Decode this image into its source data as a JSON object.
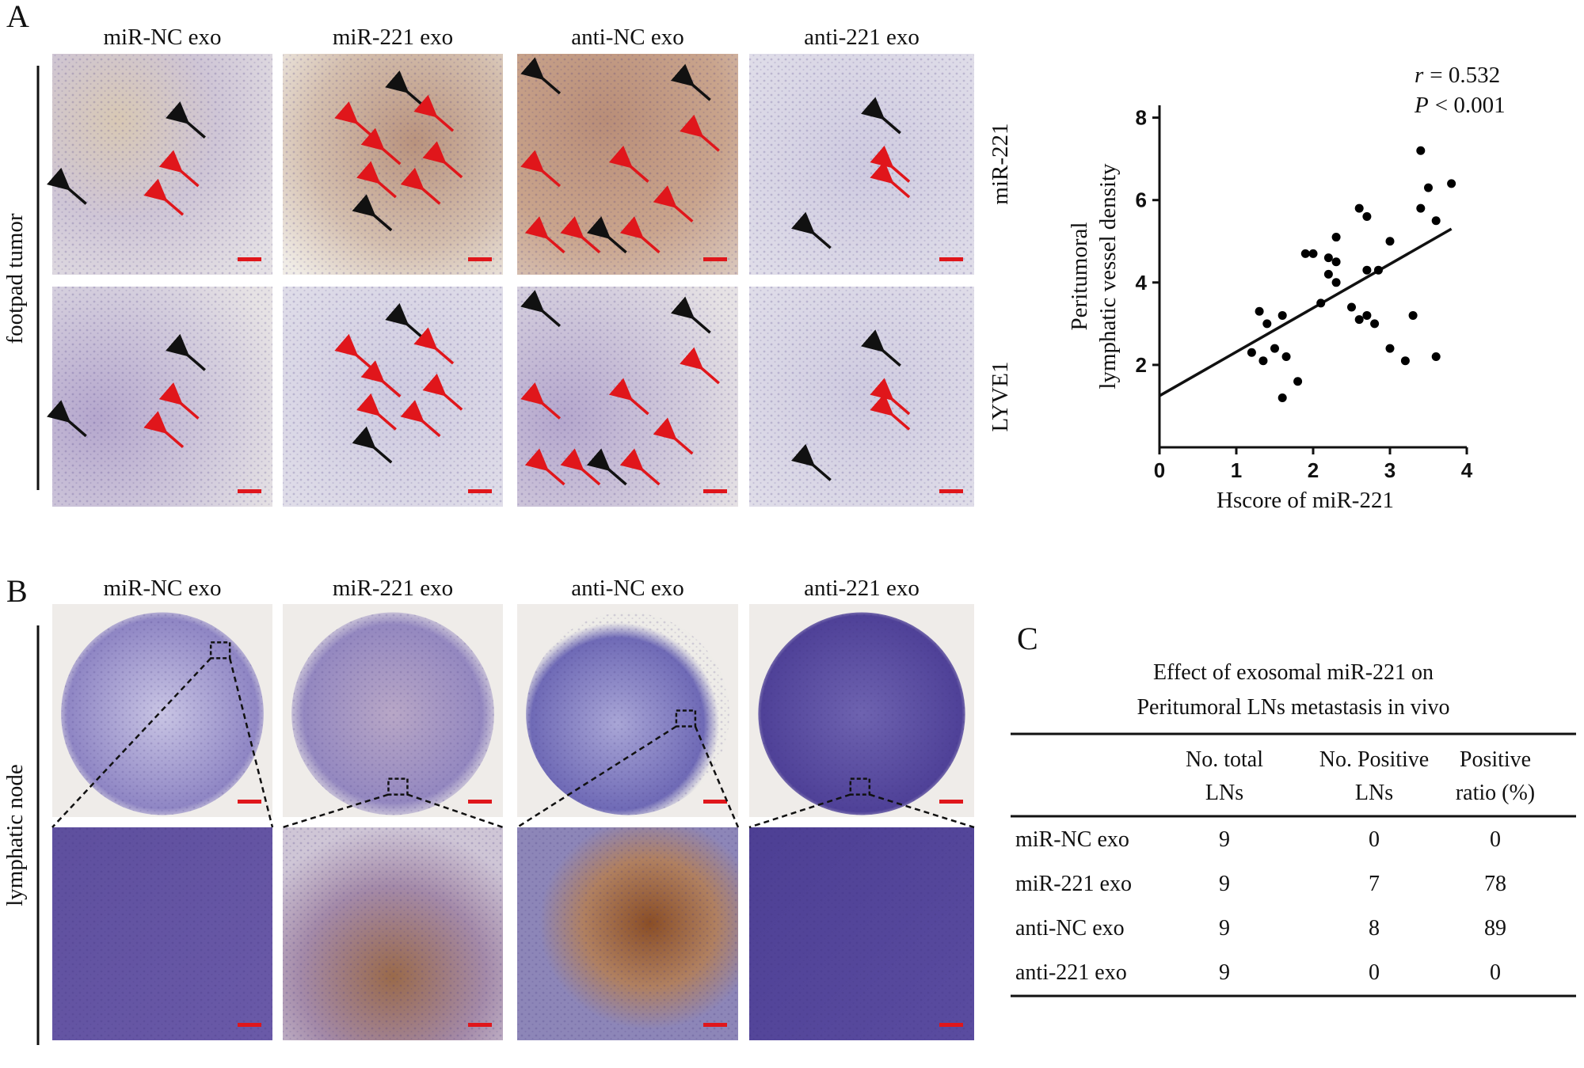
{
  "panel_labels": [
    "A",
    "B",
    "C"
  ],
  "panel_a": {
    "columns": [
      "miR-NC exo",
      "miR-221 exo",
      "anti-NC exo",
      "anti-221 exo"
    ],
    "rows": [
      "miR-221",
      "LYVE1"
    ],
    "side_label": "footpad tumor"
  },
  "panel_b": {
    "columns": [
      "miR-NC exo",
      "miR-221 exo",
      "anti-NC exo",
      "anti-221 exo"
    ],
    "side_label": "lymphatic node"
  },
  "chart_data": {
    "type": "scatter",
    "x_label": "Hscore of miR-221",
    "y_label": [
      "Peritumoral",
      "lymphatic vessel density"
    ],
    "annotations": [
      {
        "symbol": "r",
        "text": "= 0.532"
      },
      {
        "symbol": "P",
        "text": "< 0.001"
      }
    ],
    "x": [
      3.4,
      3.8,
      3.5,
      3.6,
      3.4,
      2.6,
      2.7,
      2.3,
      1.9,
      2.0,
      2.2,
      2.3,
      2.2,
      2.3,
      2.7,
      2.85,
      3.0,
      2.1,
      2.5,
      2.6,
      2.7,
      2.8,
      3.3,
      3.0,
      3.2,
      3.6,
      1.3,
      1.4,
      1.6,
      1.2,
      1.5,
      1.35,
      1.65,
      1.8,
      1.6
    ],
    "values": [
      7.2,
      6.4,
      6.3,
      5.5,
      5.8,
      5.8,
      5.6,
      5.1,
      4.7,
      4.7,
      4.6,
      4.5,
      4.2,
      4.0,
      4.3,
      4.3,
      5.0,
      3.5,
      3.4,
      3.1,
      3.2,
      3.0,
      3.2,
      2.4,
      2.1,
      2.2,
      3.3,
      3.0,
      3.2,
      2.3,
      2.4,
      2.1,
      2.2,
      1.6,
      1.2
    ],
    "color": "#000000",
    "trend_line": {
      "x": [
        0,
        3.8
      ],
      "y": [
        1.25,
        5.3
      ]
    },
    "xlim": [
      0,
      4
    ],
    "ylim": [
      0,
      8.3
    ],
    "xticks": [
      0,
      1,
      2,
      3,
      4
    ],
    "yticks": [
      2,
      4,
      6,
      8
    ]
  },
  "table": {
    "title": [
      "Effect of exosomal miR-221 on",
      "Peritumoral LNs metastasis in vivo"
    ],
    "header": [
      [
        "No. total",
        "LNs"
      ],
      [
        "No. Positive",
        "LNs"
      ],
      [
        "Positive",
        "ratio (%)"
      ]
    ],
    "rows": [
      [
        "miR-NC exo",
        "9",
        "0",
        "0"
      ],
      [
        "miR-221 exo",
        "9",
        "7",
        "78"
      ],
      [
        "anti-NC exo",
        "9",
        "8",
        "89"
      ],
      [
        "anti-221 exo",
        "9",
        "0",
        "0"
      ]
    ]
  }
}
